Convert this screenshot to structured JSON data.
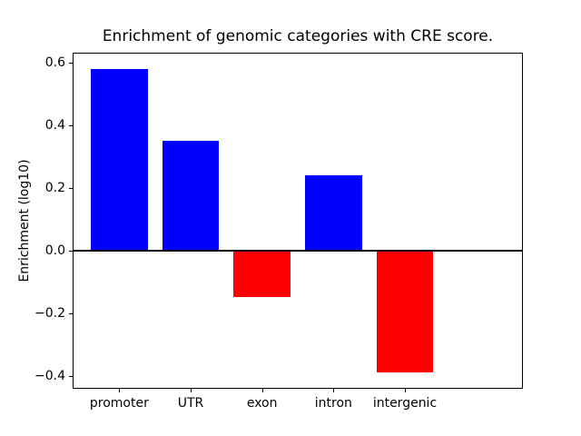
{
  "chart_data": {
    "type": "bar",
    "title": "Enrichment of genomic categories with CRE score.",
    "xlabel": "",
    "ylabel": "Enrichment (log10)",
    "categories": [
      "promoter",
      "UTR",
      "exon",
      "intron",
      "intergenic"
    ],
    "values": [
      0.58,
      0.35,
      -0.15,
      0.24,
      -0.39
    ],
    "bar_colors": [
      "#0000ff",
      "#0000ff",
      "#ff0000",
      "#0000ff",
      "#ff0000"
    ],
    "positive_color": "#0000ff",
    "negative_color": "#ff0000",
    "ylim": [
      -0.439,
      0.629
    ],
    "yticks": [
      0.6,
      0.4,
      0.2,
      0.0,
      -0.2,
      -0.4
    ],
    "ytick_labels": [
      "0.6",
      "0.4",
      "0.2",
      "0.0",
      "−0.2",
      "−0.4"
    ],
    "zero_line": true,
    "grid": false,
    "legend": null,
    "bar_width_fraction": 0.8,
    "axis_color": "#000000",
    "background_color": "#ffffff"
  }
}
